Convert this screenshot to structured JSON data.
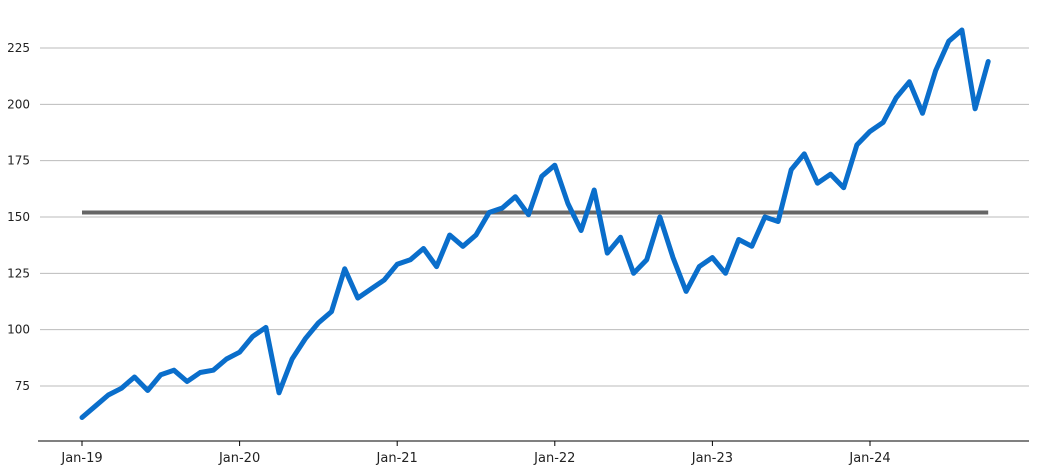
{
  "chart_data": {
    "type": "line",
    "title": "",
    "xlabel": "",
    "ylabel": "",
    "x_tick_labels": [
      "Jan-19",
      "Jan-20",
      "Jan-21",
      "Jan-22",
      "Jan-23",
      "Jan-24"
    ],
    "x_tick_dates": [
      "2019-01",
      "2020-01",
      "2021-01",
      "2022-01",
      "2023-01",
      "2024-01"
    ],
    "xlim": [
      "2018-10",
      "2024-12"
    ],
    "y_ticks": [
      75,
      100,
      125,
      150,
      175,
      200,
      225
    ],
    "ylim": [
      58,
      238
    ],
    "grid": "horizontal",
    "legend": "none",
    "colors": {
      "series": "#0a6ecb",
      "reference": "#666666",
      "grid": "#bbbbbb",
      "axis": "#000000"
    },
    "series": [
      {
        "x": [
          "2019-01",
          "2019-02",
          "2019-03",
          "2019-04",
          "2019-05",
          "2019-06",
          "2019-07",
          "2019-08",
          "2019-09",
          "2019-10",
          "2019-11",
          "2019-12",
          "2020-01",
          "2020-02",
          "2020-03",
          "2020-04",
          "2020-05",
          "2020-06",
          "2020-07",
          "2020-08",
          "2020-09",
          "2020-10",
          "2020-11",
          "2020-12",
          "2021-01",
          "2021-02",
          "2021-03",
          "2021-04",
          "2021-05",
          "2021-06",
          "2021-07",
          "2021-08",
          "2021-09",
          "2021-10",
          "2021-11",
          "2021-12",
          "2022-01",
          "2022-02",
          "2022-03",
          "2022-04",
          "2022-05",
          "2022-06",
          "2022-07",
          "2022-08",
          "2022-09",
          "2022-10",
          "2022-11",
          "2022-12",
          "2023-01",
          "2023-02",
          "2023-03",
          "2023-04",
          "2023-05",
          "2023-06",
          "2023-07",
          "2023-08",
          "2023-09",
          "2023-10",
          "2023-11",
          "2023-12",
          "2024-01",
          "2024-02",
          "2024-03",
          "2024-04",
          "2024-05",
          "2024-06",
          "2024-07",
          "2024-08",
          "2024-09",
          "2024-10"
        ],
        "values": [
          61,
          66,
          71,
          74,
          79,
          73,
          80,
          82,
          77,
          81,
          82,
          87,
          90,
          97,
          101,
          72,
          87,
          96,
          103,
          108,
          127,
          114,
          118,
          122,
          129,
          131,
          136,
          128,
          142,
          137,
          142,
          152,
          154,
          159,
          151,
          168,
          173,
          156,
          144,
          162,
          134,
          141,
          125,
          131,
          150,
          132,
          117,
          128,
          132,
          125,
          140,
          137,
          150,
          148,
          171,
          178,
          165,
          169,
          163,
          182,
          188,
          192,
          203,
          210,
          196,
          215,
          228,
          233,
          198,
          219
        ]
      },
      {
        "x": [
          "2019-01",
          "2024-10"
        ],
        "values": [
          152,
          152
        ]
      }
    ]
  }
}
